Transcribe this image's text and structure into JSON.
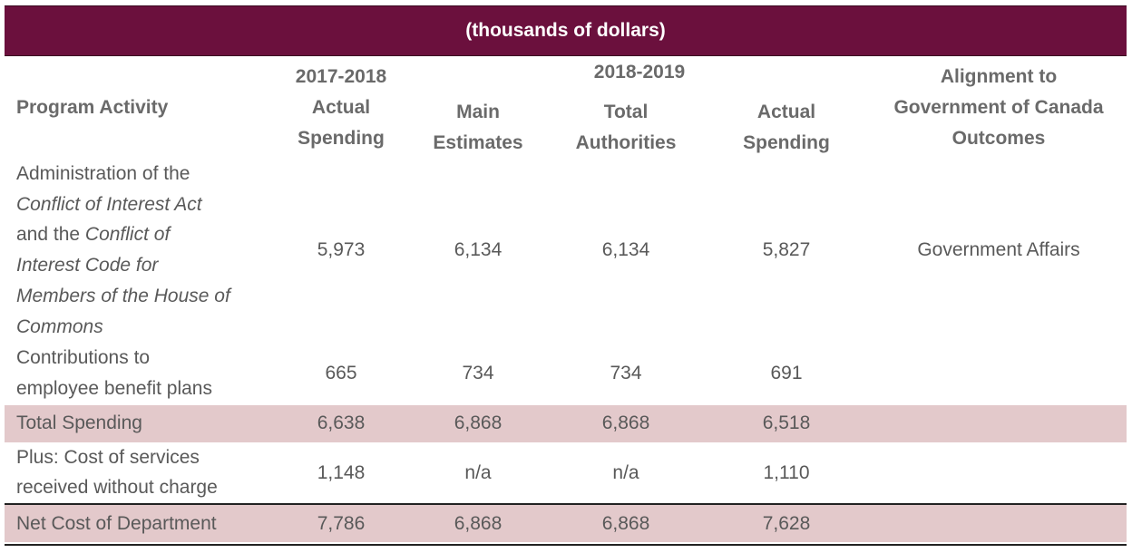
{
  "banner": "(thousands of dollars)",
  "header": {
    "program_activity": "Program Activity",
    "year_prev": "2017-2018",
    "actual_spending_line1": "Actual",
    "actual_spending_line2": "Spending",
    "year_curr": "2018-2019",
    "main_estimates_line1": "Main",
    "main_estimates_line2": "Estimates",
    "total_authorities_line1": "Total",
    "total_authorities_line2": "Authorities",
    "actual_line1": "Actual",
    "actual_line2": "Spending",
    "alignment_line1": "Alignment to",
    "alignment_line2": "Government of Canada",
    "alignment_line3": "Outcomes"
  },
  "rows": {
    "admin": {
      "line1": "Administration of the",
      "line2_italic": "Conflict of Interest Act",
      "line3_plain": "and the ",
      "line3_italic": "Conflict of",
      "line4_italic": "Interest Code for",
      "line5_italic": "Members of the House of",
      "line6_italic": "Commons",
      "v1": "5,973",
      "v2": "6,134",
      "v3": "6,134",
      "v4": "5,827",
      "alignment": "Government Affairs"
    },
    "contrib": {
      "line1": "Contributions to",
      "line2": "employee benefit plans",
      "v1": "665",
      "v2": "734",
      "v3": "734",
      "v4": "691"
    },
    "total": {
      "label": "Total Spending",
      "v1": "6,638",
      "v2": "6,868",
      "v3": "6,868",
      "v4": "6,518"
    },
    "plus": {
      "line1": "Plus: Cost of services",
      "line2": "received without charge",
      "v1": "1,148",
      "v2": "n/a",
      "v3": "n/a",
      "v4": "1,110"
    },
    "net": {
      "label": "Net Cost of Department",
      "v1": "7,786",
      "v2": "6,868",
      "v3": "6,868",
      "v4": "7,628"
    }
  },
  "colors": {
    "banner": "#6b103d",
    "highlight_band": "#e3c9cb",
    "text": "#595959"
  }
}
